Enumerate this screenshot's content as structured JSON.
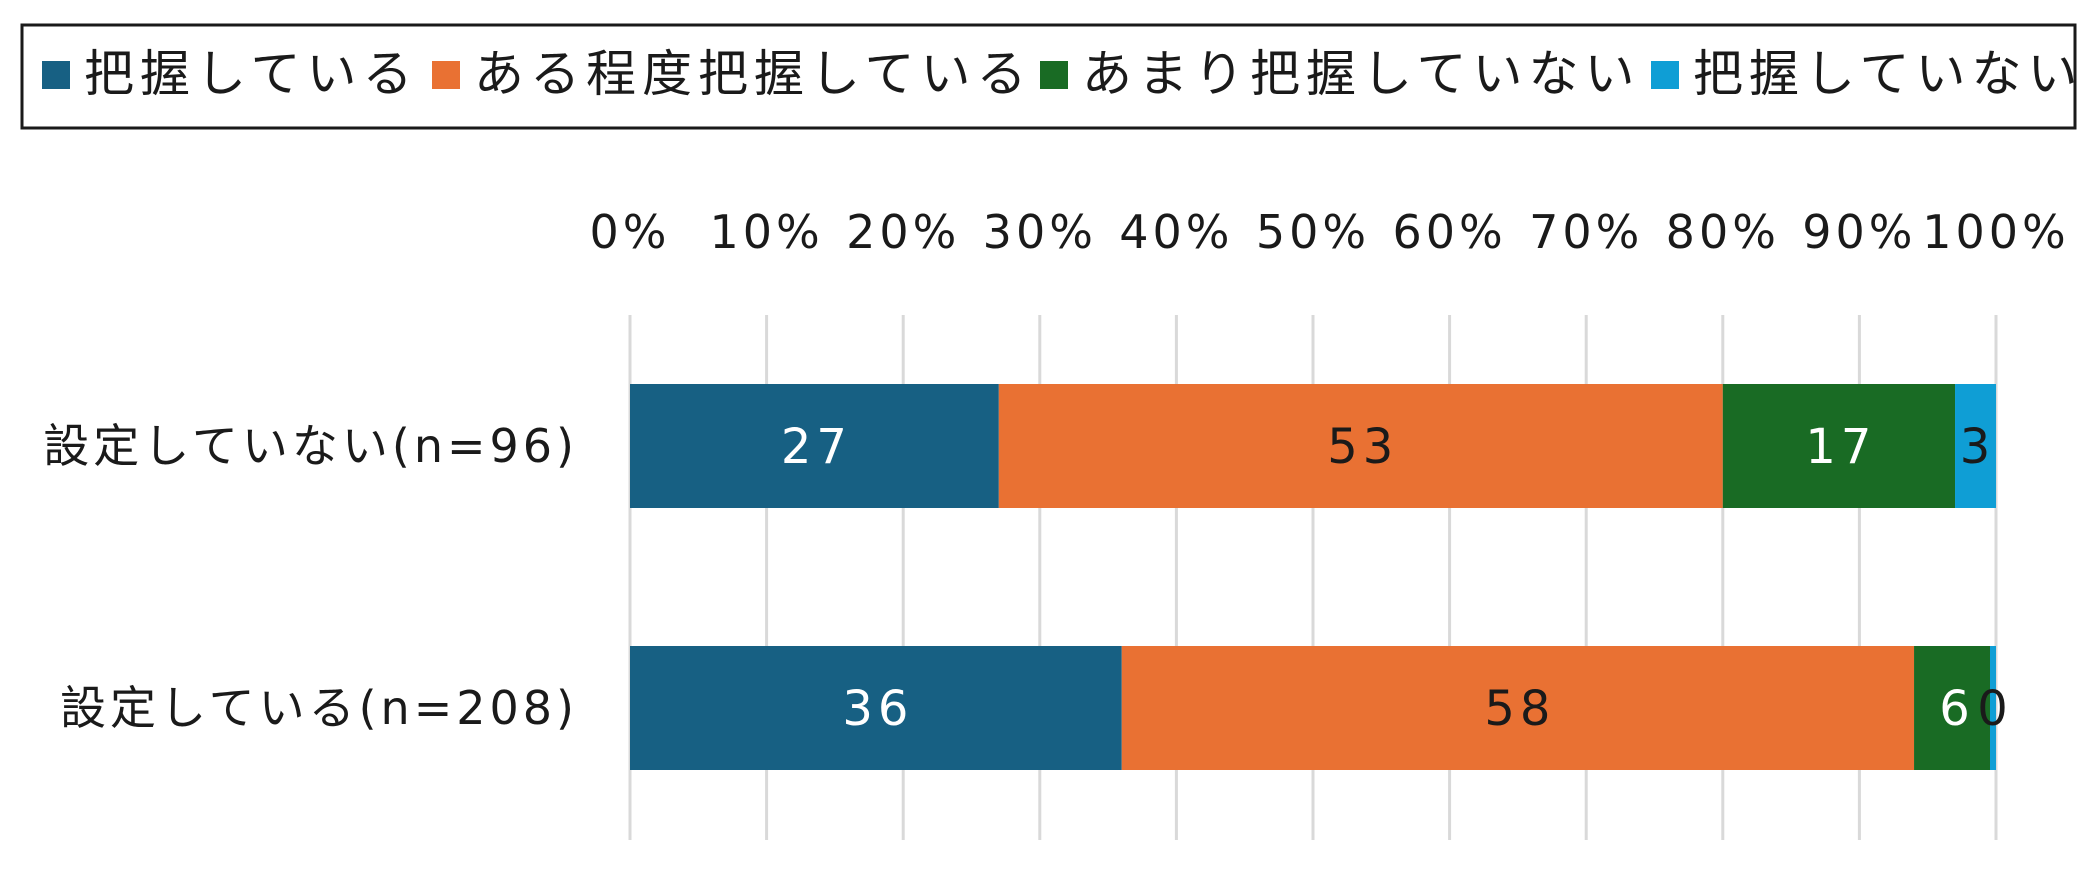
{
  "chart_data": {
    "type": "bar",
    "orientation": "horizontal",
    "stacked": true,
    "percent_axis": true,
    "categories": [
      "設定していない(n=96)",
      "設定している(n=208)"
    ],
    "series": [
      {
        "name": "把握している",
        "values": [
          27,
          36
        ],
        "color": "#176083",
        "label_color": "#ffffff"
      },
      {
        "name": "ある程度把握している",
        "values": [
          53,
          58
        ],
        "color": "#E97133",
        "label_color": "#1a1a1a"
      },
      {
        "name": "あまり把握していない",
        "values": [
          17,
          6
        ],
        "color": "#196B24",
        "label_color": "#ffffff"
      },
      {
        "name": "把握していない",
        "values": [
          3,
          0
        ],
        "color": "#0F9ED5",
        "label_color": "#1a1a1a"
      }
    ],
    "x_ticks": [
      "0%",
      "10%",
      "20%",
      "30%",
      "40%",
      "50%",
      "60%",
      "70%",
      "80%",
      "90%",
      "100%"
    ],
    "xlim": [
      0,
      100
    ],
    "x_axis_position": "top",
    "grid": true,
    "legend_position": "top",
    "title": "",
    "xlabel": "",
    "ylabel": ""
  }
}
